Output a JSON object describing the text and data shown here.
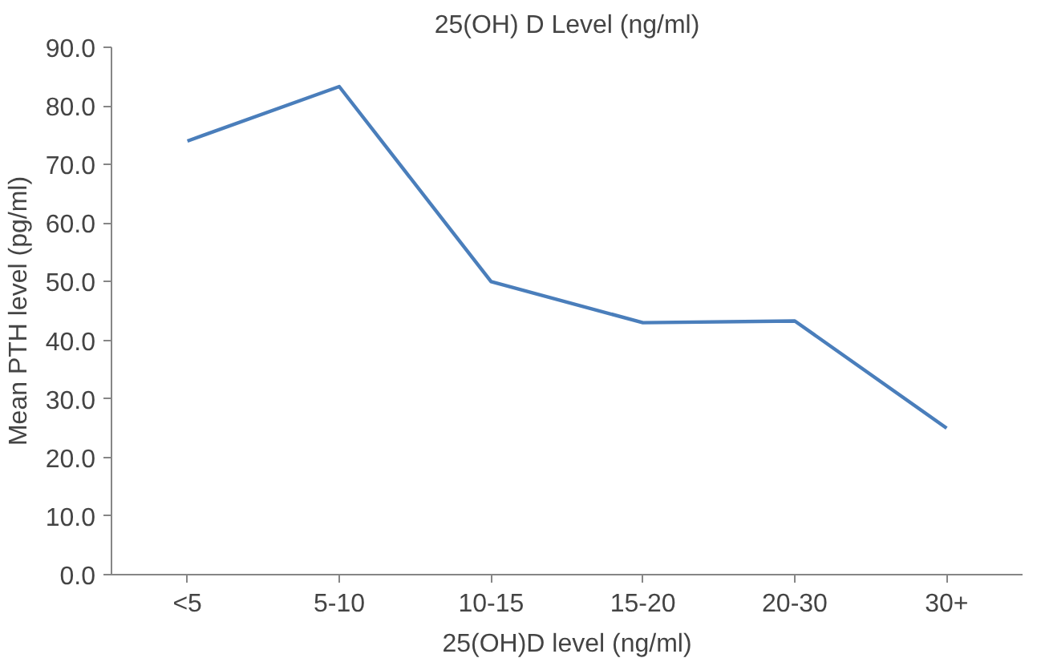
{
  "chart_data": {
    "type": "line",
    "title": "25(OH) D Level (ng/ml)",
    "xlabel": "25(OH)D level (ng/ml)",
    "ylabel": "Mean PTH level (pg/ml)",
    "categories": [
      "<5",
      "5-10",
      "10-15",
      "15-20",
      "20-30",
      "30+"
    ],
    "series": [
      {
        "color": "#4a7ebb",
        "values": [
          74.0,
          83.3,
          50.0,
          43.0,
          43.3,
          25.0
        ]
      }
    ],
    "ylim": [
      0,
      90
    ],
    "yticks": [
      {
        "value": 0,
        "label": "0.0"
      },
      {
        "value": 10,
        "label": "10.0"
      },
      {
        "value": 20,
        "label": "20.0"
      },
      {
        "value": 30,
        "label": "30.0"
      },
      {
        "value": 40,
        "label": "40.0"
      },
      {
        "value": 50,
        "label": "50.0"
      },
      {
        "value": 60,
        "label": "60.0"
      },
      {
        "value": 70,
        "label": "70.0"
      },
      {
        "value": 80,
        "label": "80.0"
      },
      {
        "value": 90,
        "label": "90.0"
      }
    ],
    "grid": false,
    "marker": "none",
    "line_style": "solid"
  }
}
